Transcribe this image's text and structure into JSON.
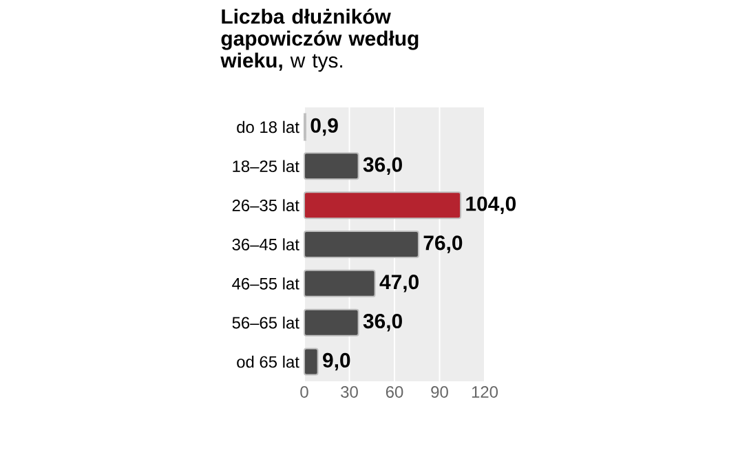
{
  "chart_data": {
    "type": "bar",
    "orientation": "horizontal",
    "title": "**Liczba dłużników gapowiczów według wieku,** w tys.",
    "categories": [
      "do 18 lat",
      "18–25 lat",
      "26–35 lat",
      "36–45 lat",
      "46–55 lat",
      "56–65 lat",
      "od 65 lat"
    ],
    "values": [
      0.9,
      36,
      104,
      76,
      47,
      36,
      9
    ],
    "colors": [
      "#c8c8c8",
      "#4a4a4a",
      "#b5232f",
      "#4a4a4a",
      "#4a4a4a",
      "#4a4a4a",
      "#4a4a4a"
    ],
    "value_labels": [
      "0,9",
      "36,0",
      "104,0",
      "76,0",
      "47,0",
      "36,0",
      "9,0"
    ],
    "xlim": [
      0,
      120
    ],
    "xticks": [
      0,
      30,
      60,
      90,
      120
    ],
    "grid": "x"
  }
}
